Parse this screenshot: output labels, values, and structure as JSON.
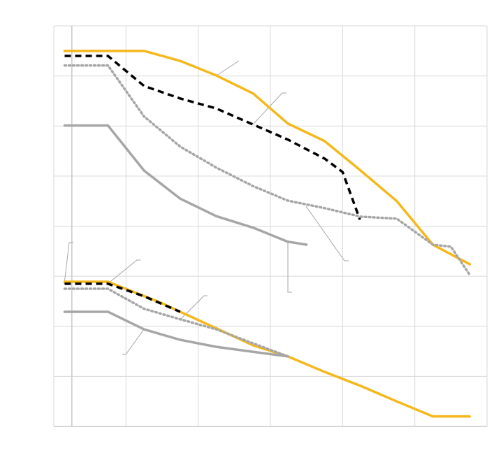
{
  "chart_data": {
    "type": "line",
    "title": "",
    "xlabel": "",
    "ylabel": "",
    "xlim": [
      0,
      6
    ],
    "ylim": [
      0,
      8
    ],
    "grid": true,
    "ref_x": 0.25,
    "colors": {
      "gold": "#F5B81C",
      "black": "#000000",
      "gray": "#A6A6A6",
      "grid": "#D9D9D9"
    },
    "series": [
      {
        "color": "#F5B81C",
        "style": "solid",
        "x": [
          0.15,
          1.25,
          1.75,
          2.25,
          2.76,
          3.24,
          3.75,
          4.25,
          4.75,
          5.25,
          5.76
        ],
        "y": [
          7.5,
          7.5,
          7.3,
          7.01,
          6.65,
          6.05,
          5.7,
          5.11,
          4.5,
          3.63,
          3.24
        ]
      },
      {
        "color": "#000000",
        "style": "dashed",
        "x": [
          0.15,
          0.75,
          1.25,
          1.75,
          2.25,
          2.76,
          3.24,
          3.75,
          4.0,
          4.24
        ],
        "y": [
          7.4,
          7.4,
          6.8,
          6.55,
          6.35,
          6.03,
          5.73,
          5.35,
          5.08,
          4.13
        ]
      },
      {
        "color": "#A6A6A6",
        "style": "dotted",
        "x": [
          0.15,
          0.75,
          1.25,
          1.75,
          2.25,
          2.76,
          3.24,
          3.75,
          4.25,
          4.75,
          5.25,
          5.5,
          5.76
        ],
        "y": [
          7.21,
          7.21,
          6.19,
          5.59,
          5.17,
          4.8,
          4.51,
          4.36,
          4.19,
          4.15,
          3.63,
          3.59,
          3.03
        ]
      },
      {
        "color": "#A6A6A6",
        "style": "solid",
        "x": [
          0.15,
          0.75,
          1.25,
          1.75,
          2.25,
          2.76,
          3.24,
          3.5
        ],
        "y": [
          6.01,
          6.01,
          5.11,
          4.55,
          4.2,
          3.97,
          3.69,
          3.63
        ]
      },
      {
        "color": "#F5B81C",
        "style": "solid",
        "x": [
          0.15,
          0.75,
          1.5,
          1.75,
          2.25,
          2.76,
          3.24,
          3.75,
          4.25,
          4.75,
          5.25,
          5.76
        ],
        "y": [
          2.89,
          2.89,
          2.46,
          2.29,
          1.96,
          1.62,
          1.4,
          1.09,
          0.81,
          0.5,
          0.2,
          0.2
        ]
      },
      {
        "color": "#000000",
        "style": "dashed",
        "x": [
          0.15,
          0.75,
          1.25,
          1.75
        ],
        "y": [
          2.85,
          2.85,
          2.6,
          2.29
        ]
      },
      {
        "color": "#A6A6A6",
        "style": "dotted",
        "x": [
          0.15,
          0.75,
          1.25,
          1.75,
          2.25,
          2.76,
          3.24
        ],
        "y": [
          2.75,
          2.75,
          2.35,
          2.14,
          1.94,
          1.66,
          1.4
        ]
      },
      {
        "color": "#A6A6A6",
        "style": "solid",
        "x": [
          0.15,
          0.75,
          1.25,
          1.75,
          2.25,
          2.76,
          3.24
        ],
        "y": [
          2.29,
          2.29,
          1.94,
          1.73,
          1.59,
          1.49,
          1.4
        ]
      }
    ]
  }
}
